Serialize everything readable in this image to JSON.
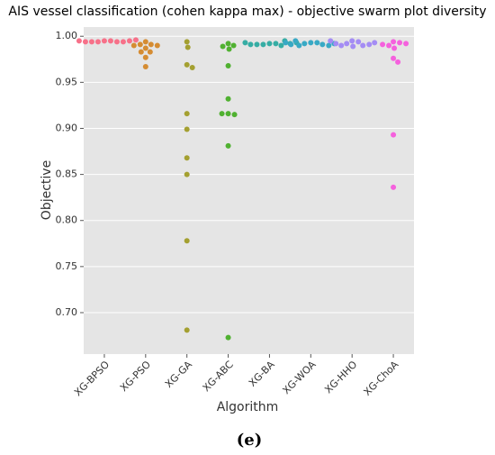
{
  "chart_data": {
    "type": "swarm",
    "title": "AIS vessel classification (cohen kappa max) -  objective swarm plot diversity",
    "xlabel": "Algorithm",
    "ylabel": "Objective",
    "caption": "(e)",
    "categories": [
      "XG-BPSO",
      "XG-PSO",
      "XG-GA",
      "XG-ABC",
      "XG-BA",
      "XG-WOA",
      "XG-HHO",
      "XG-ChoA"
    ],
    "colors": [
      "#f77189",
      "#d58c32",
      "#a4a031",
      "#50b131",
      "#36ada4",
      "#38a9c5",
      "#a48cf4",
      "#f561dd"
    ],
    "values": [
      [
        0.995,
        0.995,
        0.994,
        0.994,
        0.994,
        0.994,
        0.994,
        0.995,
        0.995,
        0.996
      ],
      [
        0.994,
        0.991,
        0.991,
        0.99,
        0.99,
        0.987,
        0.983,
        0.983,
        0.977,
        0.967
      ],
      [
        0.994,
        0.988,
        0.969,
        0.966,
        0.916,
        0.899,
        0.868,
        0.85,
        0.778,
        0.681
      ],
      [
        0.992,
        0.99,
        0.989,
        0.986,
        0.968,
        0.932,
        0.916,
        0.915,
        0.916,
        0.881,
        0.673
      ],
      [
        0.992,
        0.992,
        0.991,
        0.99,
        0.991,
        0.995,
        0.991,
        0.992,
        0.993,
        0.993
      ],
      [
        0.993,
        0.993,
        0.992,
        0.991,
        0.99,
        0.995,
        0.99,
        0.991,
        0.992,
        0.993
      ],
      [
        0.995,
        0.994,
        0.992,
        0.99,
        0.989,
        0.99,
        0.991,
        0.992,
        0.993,
        0.995
      ],
      [
        0.994,
        0.993,
        0.99,
        0.987,
        0.991,
        0.992,
        0.976,
        0.972,
        0.893,
        0.836
      ]
    ],
    "ylim": [
      0.655,
      1.01
    ],
    "yticks": [
      {
        "value": 0.7,
        "label": "0.70"
      },
      0.75,
      {
        "value": 0.8,
        "label": "0.80"
      },
      0.85,
      {
        "value": 0.9,
        "label": "0.90"
      },
      0.95,
      {
        "value": 1.0,
        "label": "1.00"
      }
    ],
    "grid": true
  }
}
